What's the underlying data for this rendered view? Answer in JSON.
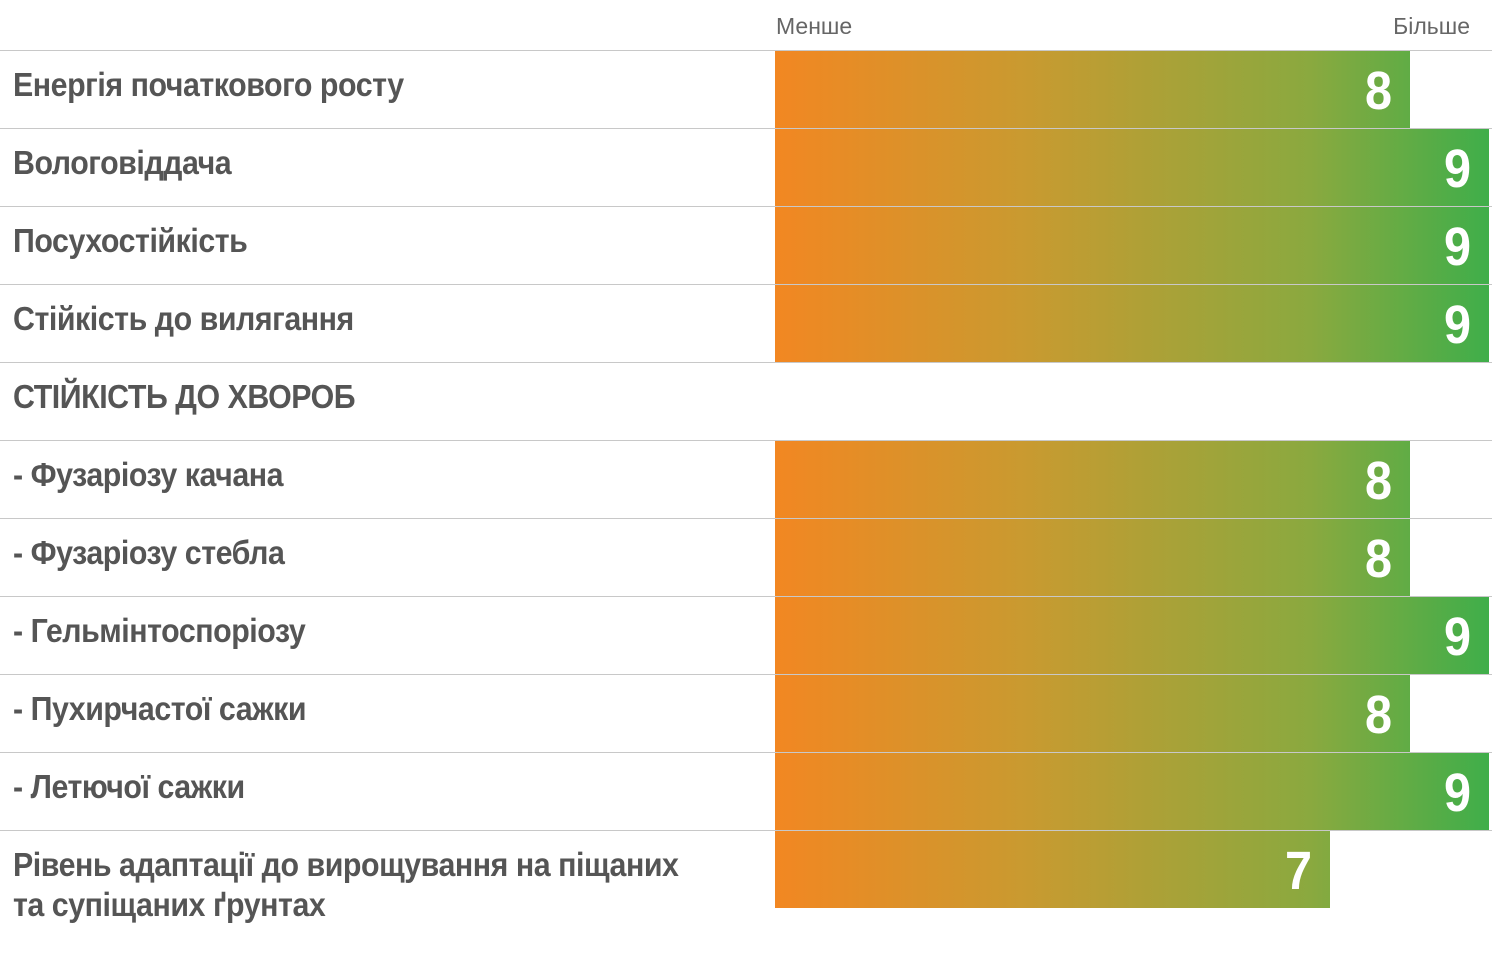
{
  "chart_data": {
    "type": "bar",
    "orientation": "horizontal",
    "scale_labels": {
      "min": "Менше",
      "max": "Більше"
    },
    "xlim": [
      0,
      9
    ],
    "categories": [
      "Енергія початкового росту",
      "Вологовіддача",
      "Посухостійкість",
      "Стійкість до вилягання",
      "СТІЙКІСТЬ ДО ХВОРОБ",
      "- Фузаріозу качана",
      "- Фузаріозу стебла",
      "- Гельмінтоспоріозу",
      "- Пухирчастої сажки",
      "- Летючої сажки",
      "Рівень адаптації до вирощування на піщаних та супіщаних ґрунтах"
    ],
    "values": [
      8,
      9,
      9,
      9,
      null,
      8,
      8,
      9,
      8,
      9,
      7
    ],
    "colors": {
      "low": "#f28722",
      "high": "#3fae4a"
    }
  }
}
